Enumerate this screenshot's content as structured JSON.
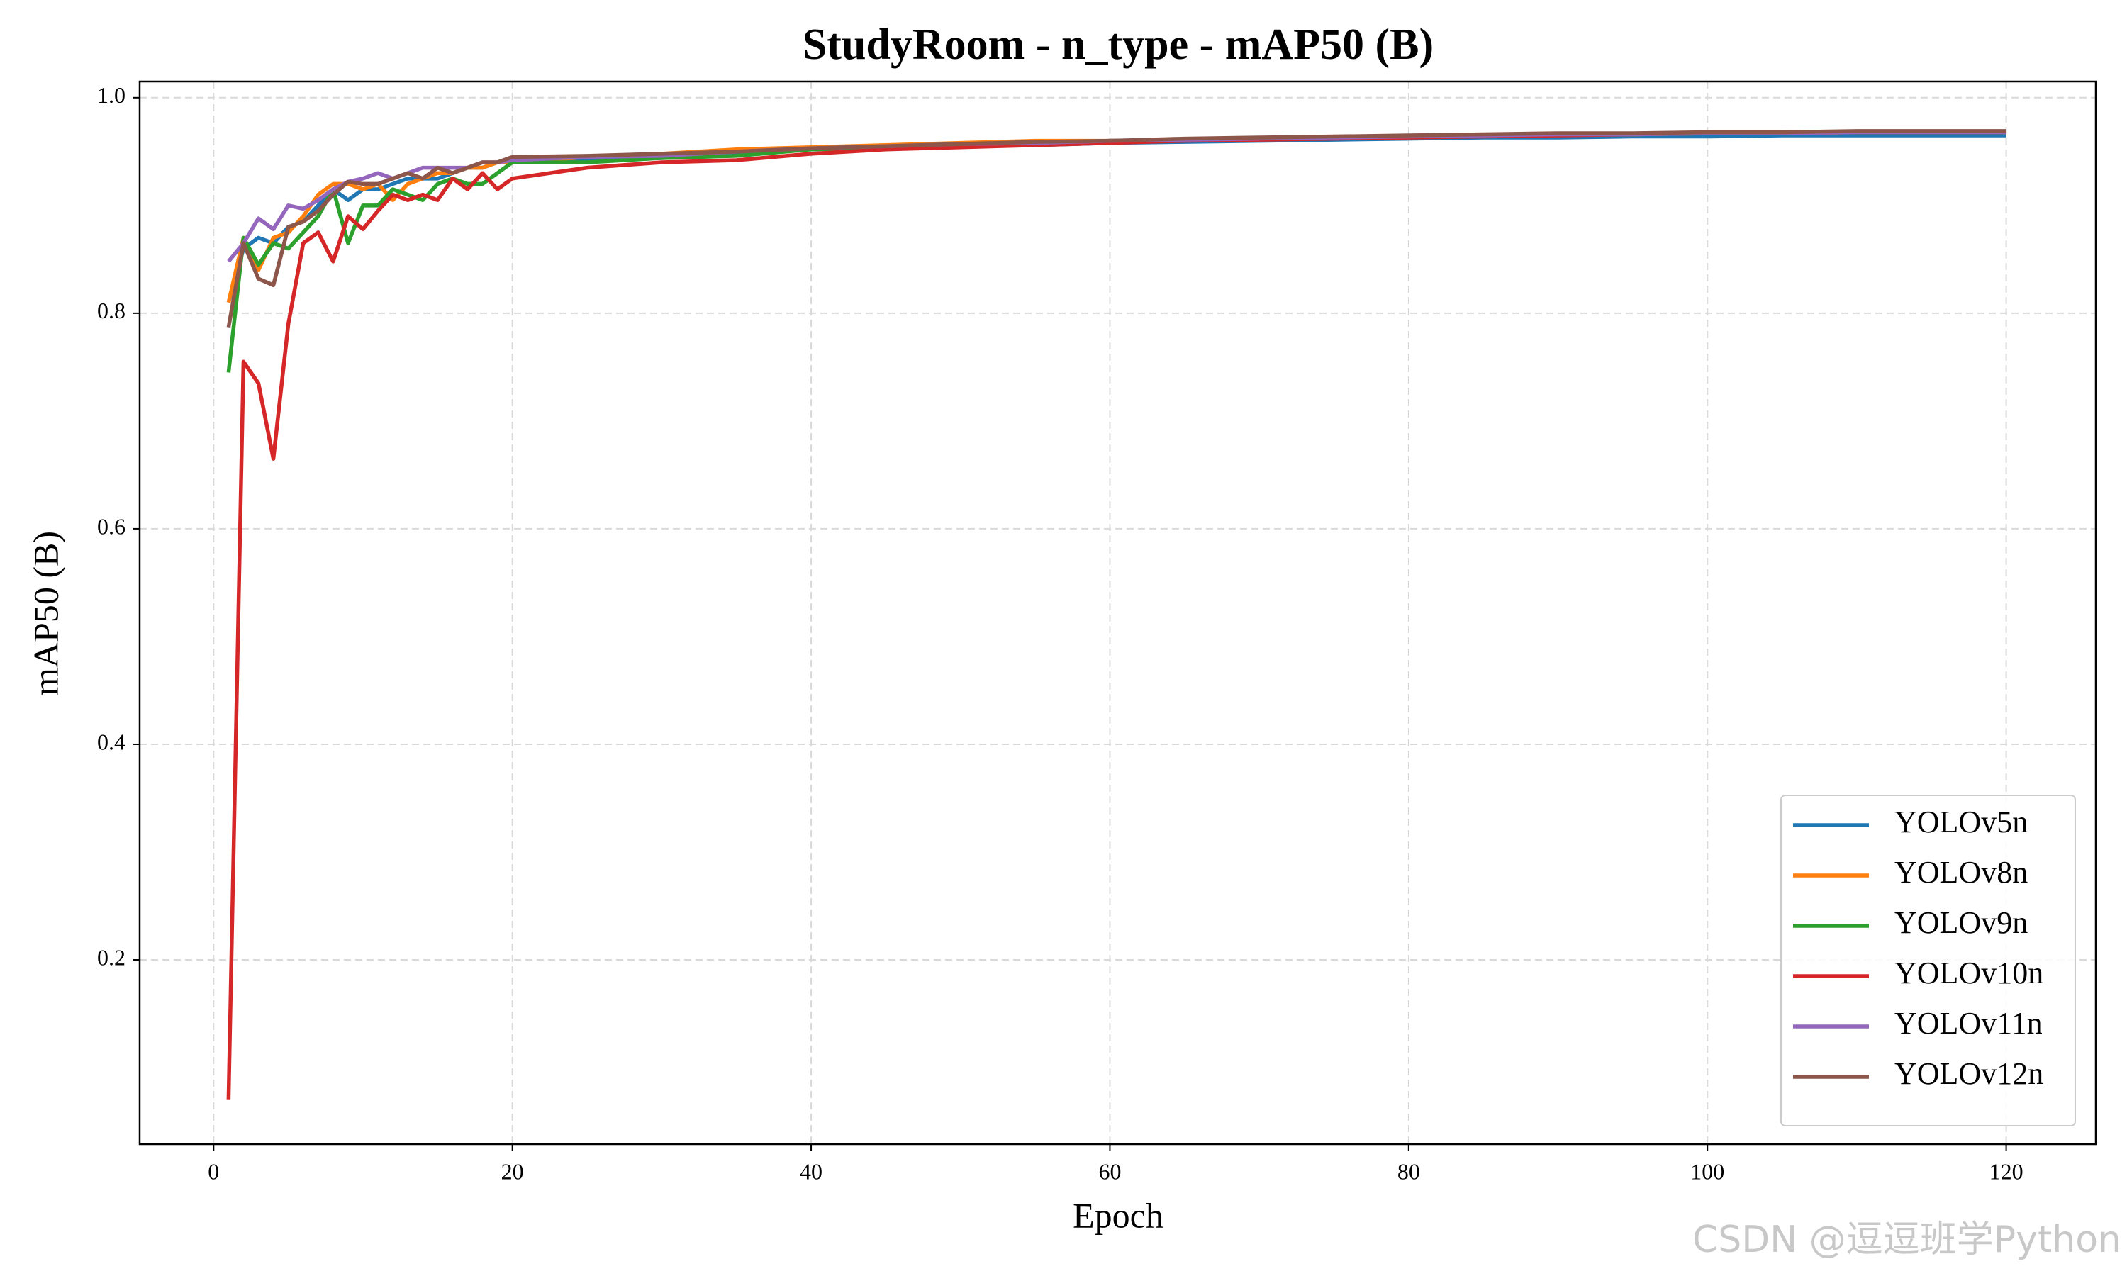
{
  "chart_data": {
    "type": "line",
    "title": "StudyRoom - n_type - mAP50 (B)",
    "xlabel": "Epoch",
    "ylabel": "mAP50 (B)",
    "watermark": "CSDN @逗逗班学Python",
    "x": [
      1,
      2,
      3,
      4,
      5,
      6,
      7,
      8,
      9,
      10,
      11,
      12,
      13,
      14,
      15,
      16,
      17,
      18,
      19,
      20,
      25,
      30,
      35,
      40,
      45,
      50,
      55,
      60,
      65,
      70,
      75,
      80,
      85,
      90,
      95,
      100,
      105,
      110,
      115,
      120
    ],
    "series": [
      {
        "name": "YOLOv5n",
        "color": "#1f77b4",
        "values": [
          0.81,
          0.86,
          0.87,
          0.865,
          0.88,
          0.885,
          0.9,
          0.915,
          0.905,
          0.915,
          0.915,
          0.92,
          0.925,
          0.925,
          0.925,
          0.93,
          0.935,
          0.935,
          0.94,
          0.94,
          0.943,
          0.944,
          0.948,
          0.952,
          0.954,
          0.955,
          0.956,
          0.958,
          0.959,
          0.96,
          0.961,
          0.962,
          0.963,
          0.963,
          0.964,
          0.964,
          0.965,
          0.965,
          0.965,
          0.965
        ]
      },
      {
        "name": "YOLOv8n",
        "color": "#ff7f0e",
        "values": [
          0.81,
          0.87,
          0.84,
          0.87,
          0.875,
          0.89,
          0.91,
          0.92,
          0.92,
          0.915,
          0.92,
          0.905,
          0.92,
          0.925,
          0.93,
          0.93,
          0.935,
          0.935,
          0.94,
          0.94,
          0.945,
          0.948,
          0.952,
          0.954,
          0.956,
          0.958,
          0.96,
          0.96,
          0.961,
          0.962,
          0.963,
          0.964,
          0.965,
          0.966,
          0.966,
          0.967,
          0.967,
          0.968,
          0.968,
          0.968
        ]
      },
      {
        "name": "YOLOv9n",
        "color": "#2ca02c",
        "values": [
          0.745,
          0.87,
          0.845,
          0.865,
          0.86,
          0.875,
          0.89,
          0.915,
          0.865,
          0.9,
          0.9,
          0.915,
          0.91,
          0.905,
          0.92,
          0.925,
          0.92,
          0.92,
          0.93,
          0.94,
          0.94,
          0.944,
          0.946,
          0.952,
          0.954,
          0.956,
          0.958,
          0.96,
          0.961,
          0.962,
          0.963,
          0.964,
          0.965,
          0.966,
          0.966,
          0.967,
          0.967,
          0.968,
          0.968,
          0.968
        ]
      },
      {
        "name": "YOLOv10n",
        "color": "#d62728",
        "values": [
          0.07,
          0.755,
          0.735,
          0.665,
          0.79,
          0.865,
          0.875,
          0.848,
          0.89,
          0.878,
          0.895,
          0.91,
          0.905,
          0.91,
          0.905,
          0.925,
          0.915,
          0.93,
          0.915,
          0.925,
          0.935,
          0.94,
          0.942,
          0.948,
          0.952,
          0.954,
          0.956,
          0.958,
          0.96,
          0.961,
          0.962,
          0.963,
          0.964,
          0.965,
          0.966,
          0.967,
          0.967,
          0.968,
          0.968,
          0.968
        ]
      },
      {
        "name": "YOLOv11n",
        "color": "#9467bd",
        "values": [
          0.848,
          0.865,
          0.888,
          0.878,
          0.9,
          0.897,
          0.905,
          0.915,
          0.922,
          0.925,
          0.93,
          0.925,
          0.93,
          0.935,
          0.935,
          0.935,
          0.935,
          0.94,
          0.94,
          0.942,
          0.945,
          0.946,
          0.95,
          0.953,
          0.955,
          0.957,
          0.958,
          0.96,
          0.961,
          0.962,
          0.963,
          0.964,
          0.965,
          0.966,
          0.966,
          0.967,
          0.967,
          0.968,
          0.968,
          0.968
        ]
      },
      {
        "name": "YOLOv12n",
        "color": "#8c564b",
        "values": [
          0.787,
          0.865,
          0.832,
          0.826,
          0.88,
          0.885,
          0.895,
          0.91,
          0.922,
          0.92,
          0.92,
          0.925,
          0.93,
          0.925,
          0.935,
          0.93,
          0.935,
          0.94,
          0.94,
          0.945,
          0.946,
          0.948,
          0.95,
          0.953,
          0.955,
          0.957,
          0.959,
          0.96,
          0.962,
          0.963,
          0.964,
          0.965,
          0.966,
          0.967,
          0.967,
          0.968,
          0.968,
          0.969,
          0.969,
          0.969
        ]
      }
    ],
    "xlim": [
      -4.95,
      126
    ],
    "ylim": [
      0.029,
      1.015
    ],
    "xticks": [
      0,
      20,
      40,
      60,
      80,
      100,
      120
    ],
    "yticks": [
      0.2,
      0.4,
      0.6,
      0.8,
      {
        "value": 1,
        "label": "1.0"
      }
    ],
    "grid": true,
    "legend": "lower right"
  }
}
